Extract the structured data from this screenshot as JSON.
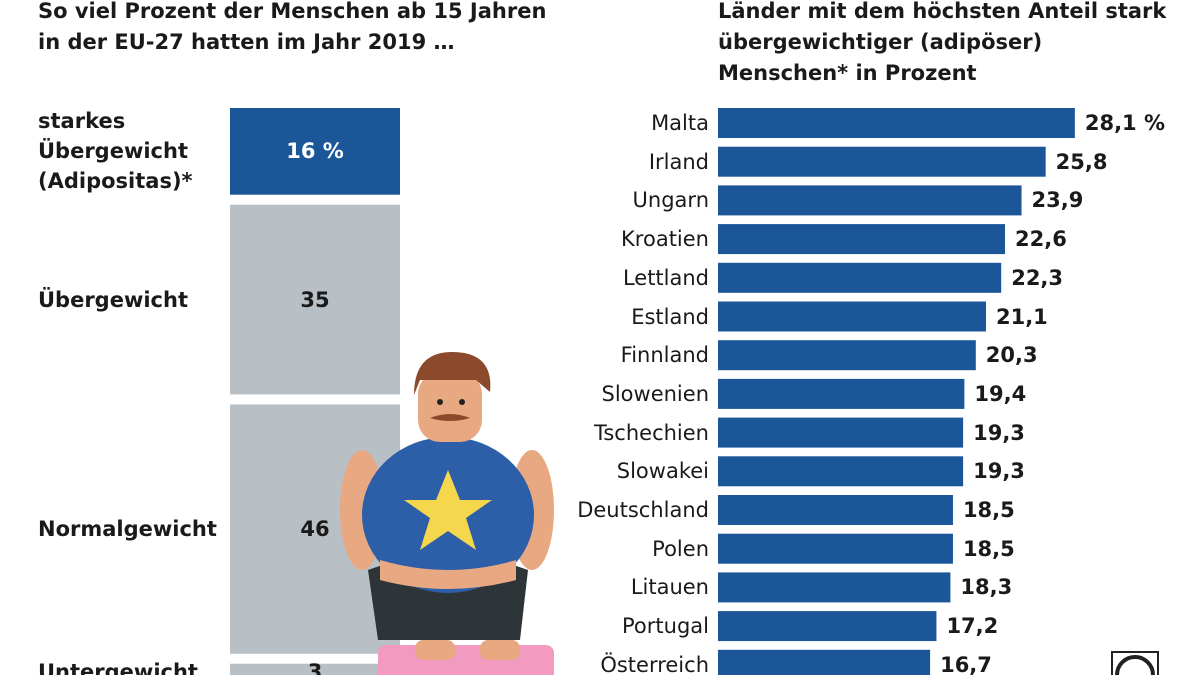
{
  "chart_data": [
    {
      "type": "stacked-column",
      "title": "So viel Prozent der Menschen ab 15 Jahren in der EU-27 hatten im Jahr 2019 …",
      "categories": [
        "starkes Übergewicht (Adipositas)*",
        "Übergewicht",
        "Normalgewicht",
        "Untergewicht"
      ],
      "values": [
        16,
        35,
        46,
        3
      ],
      "value_labels": [
        "16 %",
        "35",
        "46",
        "3"
      ],
      "colors": [
        "#1b5698",
        "#b8c0c6",
        "#b8c0c6",
        "#b8c0c6"
      ]
    },
    {
      "type": "hbar",
      "title": "Länder mit dem höchsten Anteil stark übergewichtiger (adipöser) Menschen* in Prozent",
      "categories": [
        "Malta",
        "Irland",
        "Ungarn",
        "Kroatien",
        "Lettland",
        "Estland",
        "Finnland",
        "Slowenien",
        "Tschechien",
        "Slowakei",
        "Deutschland",
        "Polen",
        "Litauen",
        "Portugal",
        "Österreich"
      ],
      "values": [
        28.1,
        25.8,
        23.9,
        22.6,
        22.3,
        21.1,
        20.3,
        19.4,
        19.3,
        19.3,
        18.5,
        18.5,
        18.3,
        17.2,
        16.7
      ],
      "value_labels": [
        "28,1 %",
        "25,8",
        "23,9",
        "22,6",
        "22,3",
        "21,1",
        "20,3",
        "19,4",
        "19,3",
        "19,3",
        "18,5",
        "18,5",
        "18,3",
        "17,2",
        "16,7"
      ],
      "color": "#1b5698"
    }
  ]
}
